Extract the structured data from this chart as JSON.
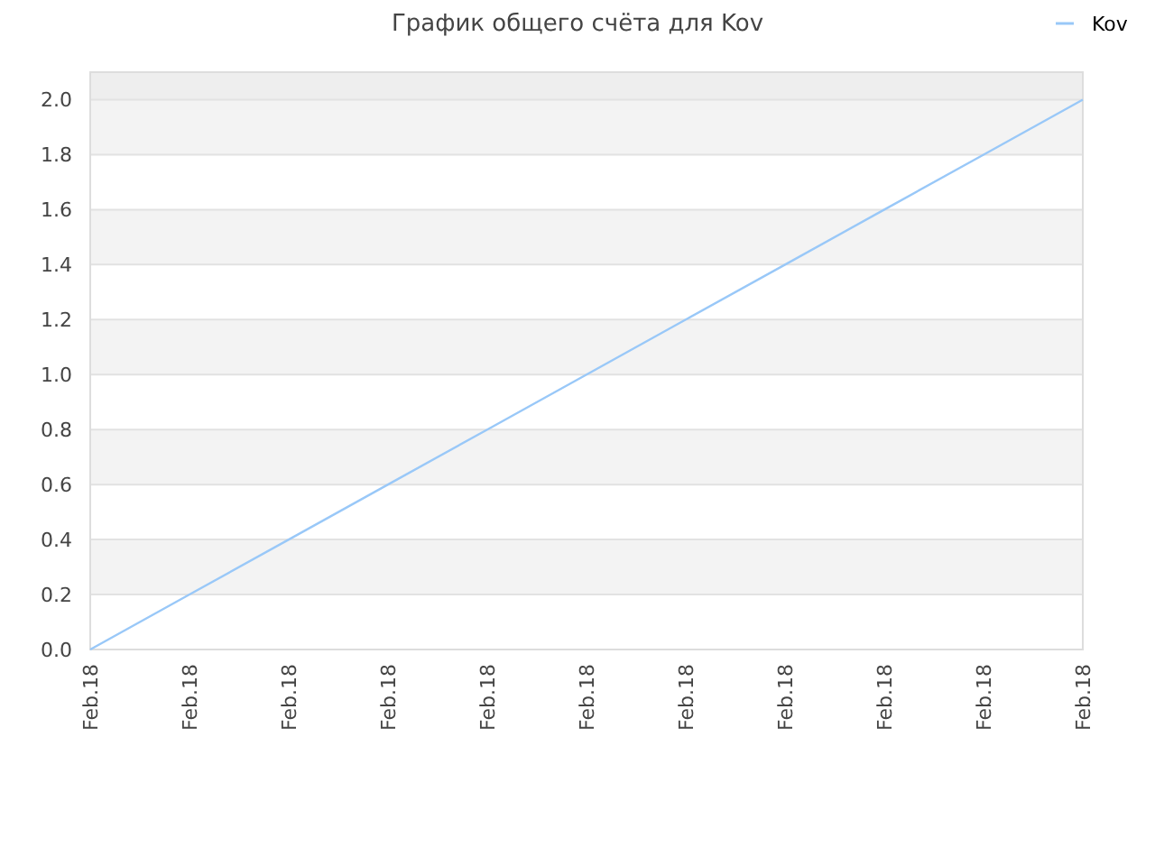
{
  "chart_data": {
    "type": "line",
    "title": "График общего счёта для Kov",
    "categories": [
      "Feb.18",
      "Feb.18",
      "Feb.18",
      "Feb.18",
      "Feb.18",
      "Feb.18",
      "Feb.18",
      "Feb.18",
      "Feb.18",
      "Feb.18",
      "Feb.18"
    ],
    "series": [
      {
        "name": "Kov",
        "color": "#99c8f8",
        "values": [
          0,
          0.2,
          0.4,
          0.6,
          0.8,
          1.0,
          1.2,
          1.4,
          1.6,
          1.8,
          2.0
        ]
      }
    ],
    "ylim": [
      0,
      2.1
    ],
    "yticks": [
      {
        "value": 0,
        "label": "0.0"
      },
      0.2,
      0.4,
      0.6,
      0.8,
      {
        "value": 1,
        "label": "1.0"
      },
      1.2,
      1.4,
      1.6,
      1.8,
      {
        "value": 2,
        "label": "2.0"
      }
    ],
    "grid": "y",
    "legend": "top right"
  }
}
